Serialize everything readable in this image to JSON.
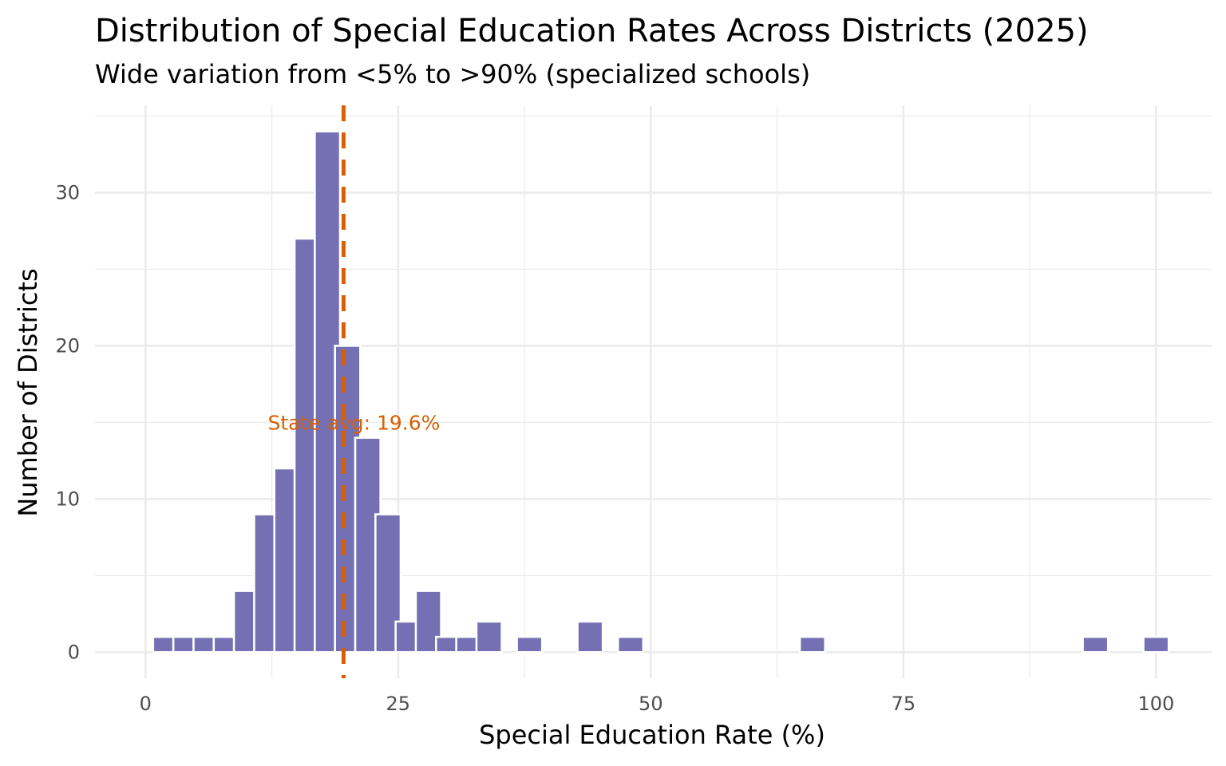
{
  "chart_data": {
    "type": "bar",
    "title": "Distribution of Special Education Rates Across Districts (2025)",
    "subtitle": "Wide variation from <5% to >90% (specialized schools)",
    "xlabel": "Special Education Rate (%)",
    "ylabel": "Number of Districts",
    "xlim": [
      -5,
      105.5
    ],
    "ylim": [
      -1.7,
      35.7
    ],
    "bin_width": 2.5,
    "x_ticks": [
      0,
      25,
      50,
      75,
      100
    ],
    "x_tick_labels": [
      "0",
      "25",
      "50",
      "75",
      "100"
    ],
    "y_ticks": [
      0,
      10,
      20,
      30
    ],
    "y_tick_labels": [
      "0",
      "10",
      "20",
      "30"
    ],
    "bins": [
      {
        "x": 2.0,
        "count": 1
      },
      {
        "x": 4.0,
        "count": 1
      },
      {
        "x": 6.0,
        "count": 1
      },
      {
        "x": 8.0,
        "count": 1
      },
      {
        "x": 10.0,
        "count": 4
      },
      {
        "x": 12.0,
        "count": 9
      },
      {
        "x": 14.0,
        "count": 12
      },
      {
        "x": 16.0,
        "count": 27
      },
      {
        "x": 18.0,
        "count": 34
      },
      {
        "x": 20.0,
        "count": 20
      },
      {
        "x": 22.0,
        "count": 14
      },
      {
        "x": 24.0,
        "count": 9
      },
      {
        "x": 26.0,
        "count": 2
      },
      {
        "x": 28.0,
        "count": 4
      },
      {
        "x": 30.0,
        "count": 1
      },
      {
        "x": 32.0,
        "count": 1
      },
      {
        "x": 34.0,
        "count": 2
      },
      {
        "x": 38.0,
        "count": 1
      },
      {
        "x": 44.0,
        "count": 2
      },
      {
        "x": 48.0,
        "count": 1
      },
      {
        "x": 66.0,
        "count": 1
      },
      {
        "x": 94.0,
        "count": 1
      },
      {
        "x": 100.0,
        "count": 1
      }
    ],
    "reference_line": {
      "x": 19.6,
      "label": "State avg: 19.6%",
      "label_y": 15
    },
    "grid": true,
    "legend": "none"
  },
  "colors": {
    "bar": "#7570b3",
    "reference": "#d95f02",
    "grid": "#ebebeb",
    "text": "#000000",
    "tick_text": "#4d4d4d"
  }
}
